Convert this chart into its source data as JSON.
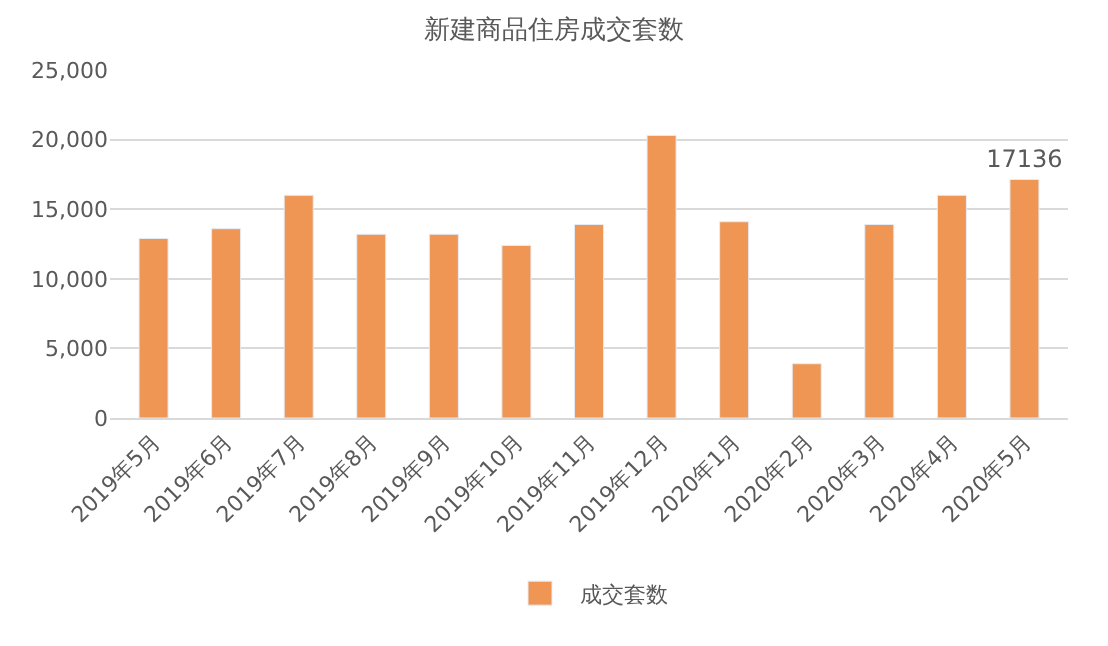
{
  "chart_data": {
    "type": "bar",
    "title": "新建商品住房成交套数",
    "categories": [
      "2019年5月",
      "2019年6月",
      "2019年7月",
      "2019年8月",
      "2019年9月",
      "2019年10月",
      "2019年11月",
      "2019年12月",
      "2020年1月",
      "2020年2月",
      "2020年3月",
      "2020年4月",
      "2020年5月"
    ],
    "series": [
      {
        "name": "成交套数",
        "color": "#ef9655",
        "values": [
          12900,
          13600,
          16000,
          13200,
          13200,
          12400,
          13900,
          20300,
          14100,
          3900,
          13900,
          16000,
          17136
        ],
        "value_labels": [
          null,
          null,
          null,
          null,
          null,
          null,
          null,
          null,
          null,
          null,
          null,
          null,
          "17136"
        ]
      }
    ],
    "ylim": [
      0,
      25000
    ],
    "yticks": [
      {
        "value": 0,
        "label": "0"
      },
      {
        "value": 5000,
        "label": "5,000"
      },
      {
        "value": 10000,
        "label": "10,000"
      },
      {
        "value": 15000,
        "label": "15,000"
      },
      {
        "value": 20000,
        "label": "20,000"
      },
      {
        "value": 25000,
        "label": "25,000"
      }
    ],
    "grid": "y",
    "legend": "bottom"
  }
}
